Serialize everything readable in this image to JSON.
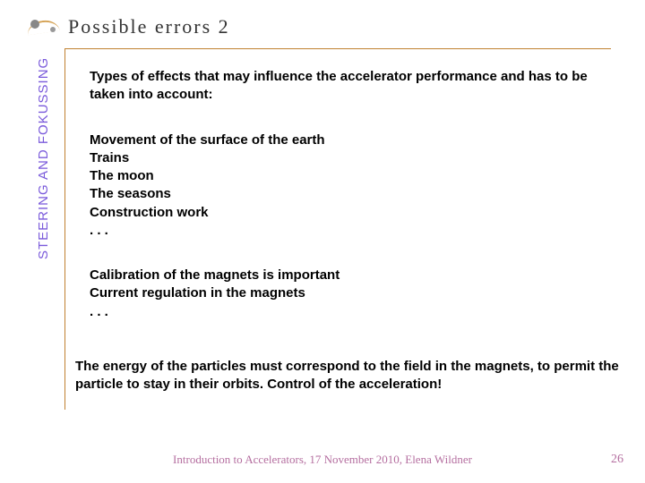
{
  "title": "Possible errors 2",
  "sidebar_label": "STEERING AND FOKUSSING",
  "colors": {
    "rule": "#c08030",
    "sidebar_text": "#7a5adb",
    "footer_text": "#b56fa0",
    "body_text": "#000000",
    "title_text": "#333333",
    "background": "#ffffff"
  },
  "typography": {
    "title_font": "Georgia",
    "title_size_pt": 17,
    "body_font": "Comic Sans MS",
    "body_size_pt": 11,
    "body_weight": "bold",
    "sidebar_font": "Arial",
    "sidebar_size_pt": 11,
    "footer_font": "Georgia",
    "footer_size_pt": 10
  },
  "intro": "Types of effects that may influence the accelerator performance and has to be taken into account:",
  "list1": [
    "Movement of the surface of the earth",
    "Trains",
    "The moon",
    "The seasons",
    "Construction work",
    ". . ."
  ],
  "list2": [
    "Calibration of the magnets is important",
    "Current regulation in the magnets",
    ". . ."
  ],
  "conclusion": "The energy of the particles must correspond to the field in the magnets, to permit the particle to stay in their orbits. Control of the acceleration!",
  "footer": "Introduction to Accelerators, 17 November 2010, Elena Wildner",
  "page_number": "26"
}
